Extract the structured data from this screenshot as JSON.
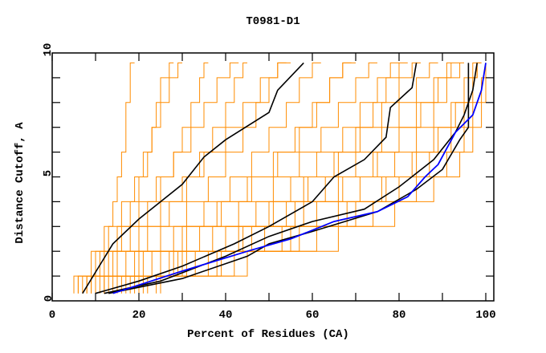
{
  "chart_data": {
    "type": "line",
    "title": "T0981-D1",
    "xlabel": "Percent of Residues (CA)",
    "ylabel": "Distance Cutoff, A",
    "xlim": [
      0,
      100
    ],
    "ylim": [
      0,
      10
    ],
    "x_tick_labels": [
      "0",
      "20",
      "40",
      "60",
      "80",
      "100"
    ],
    "y_tick_labels": [
      "0",
      "5",
      "10"
    ],
    "grid": false,
    "colors": {
      "models": "#ff8c00",
      "highlight": "#000000",
      "best": "#0000ff"
    },
    "orange_cutoffs": [
      0.3,
      1,
      2,
      3,
      4,
      5,
      6,
      7,
      8,
      9,
      9.6
    ],
    "orange_series": [
      [
        5,
        9,
        12,
        14,
        15,
        16,
        17,
        17,
        18,
        18,
        19
      ],
      [
        6,
        11,
        15,
        18,
        20,
        22,
        23,
        24,
        25,
        27,
        28
      ],
      [
        7,
        13,
        18,
        22,
        25,
        28,
        30,
        32,
        34,
        35,
        36
      ],
      [
        8,
        15,
        22,
        27,
        31,
        34,
        37,
        40,
        42,
        44,
        45
      ],
      [
        9,
        17,
        25,
        31,
        36,
        40,
        44,
        47,
        50,
        52,
        54
      ],
      [
        10,
        19,
        28,
        35,
        41,
        46,
        50,
        54,
        57,
        60,
        62
      ],
      [
        11,
        21,
        31,
        39,
        46,
        52,
        57,
        61,
        64,
        67,
        69
      ],
      [
        12,
        23,
        34,
        43,
        51,
        57,
        62,
        66,
        70,
        73,
        75
      ],
      [
        13,
        25,
        37,
        47,
        55,
        61,
        67,
        71,
        75,
        78,
        80
      ],
      [
        14,
        27,
        40,
        51,
        59,
        66,
        71,
        76,
        80,
        83,
        85
      ],
      [
        15,
        29,
        43,
        54,
        63,
        70,
        76,
        80,
        84,
        87,
        89
      ],
      [
        16,
        31,
        46,
        58,
        67,
        75,
        80,
        84,
        88,
        91,
        92
      ],
      [
        18,
        33,
        49,
        61,
        71,
        79,
        84,
        88,
        91,
        94,
        95
      ],
      [
        20,
        36,
        53,
        66,
        76,
        83,
        88,
        92,
        95,
        97,
        98
      ],
      [
        22,
        39,
        57,
        70,
        80,
        87,
        92,
        95,
        97,
        98,
        99
      ],
      [
        24,
        42,
        61,
        74,
        84,
        91,
        95,
        97,
        99,
        100,
        100
      ],
      [
        25,
        45,
        66,
        79,
        88,
        94,
        97,
        99,
        100,
        100,
        100
      ],
      [
        9,
        14,
        20,
        25,
        30,
        35,
        40,
        44,
        48,
        52,
        55
      ],
      [
        12,
        20,
        30,
        38,
        45,
        51,
        56,
        60,
        64,
        67,
        70
      ],
      [
        17,
        28,
        40,
        50,
        58,
        65,
        70,
        74,
        77,
        80,
        82
      ],
      [
        8,
        12,
        16,
        20,
        24,
        28,
        32,
        35,
        38,
        41,
        43
      ],
      [
        21,
        38,
        55,
        68,
        77,
        84,
        89,
        93,
        96,
        98,
        99
      ],
      [
        19,
        30,
        44,
        56,
        66,
        74,
        80,
        85,
        89,
        92,
        94
      ],
      [
        6,
        10,
        13,
        16,
        19,
        21,
        23,
        25,
        27,
        29,
        30
      ]
    ],
    "black_series": [
      [
        [
          7,
          0.3
        ],
        [
          14,
          2.3
        ],
        [
          20,
          3.3
        ],
        [
          30,
          4.7
        ],
        [
          35,
          5.8
        ],
        [
          40,
          6.5
        ],
        [
          50,
          7.6
        ],
        [
          52,
          8.5
        ],
        [
          58,
          9.6
        ]
      ],
      [
        [
          10,
          0.3
        ],
        [
          20,
          0.8
        ],
        [
          30,
          1.4
        ],
        [
          42,
          2.3
        ],
        [
          50,
          3.0
        ],
        [
          60,
          4.0
        ],
        [
          65,
          5.0
        ],
        [
          72,
          5.7
        ],
        [
          77,
          6.6
        ],
        [
          78,
          7.8
        ],
        [
          83,
          8.6
        ],
        [
          84,
          9.6
        ]
      ],
      [
        [
          12,
          0.3
        ],
        [
          25,
          0.8
        ],
        [
          40,
          1.8
        ],
        [
          50,
          2.6
        ],
        [
          60,
          3.2
        ],
        [
          72,
          3.7
        ],
        [
          80,
          4.6
        ],
        [
          88,
          5.7
        ],
        [
          93,
          6.8
        ],
        [
          95,
          7.5
        ],
        [
          97,
          8.5
        ],
        [
          98,
          9.6
        ]
      ],
      [
        [
          13,
          0.3
        ],
        [
          30,
          0.9
        ],
        [
          45,
          1.8
        ],
        [
          50,
          2.3
        ],
        [
          60,
          2.8
        ],
        [
          75,
          3.6
        ],
        [
          84,
          4.5
        ],
        [
          90,
          5.3
        ],
        [
          94,
          6.5
        ],
        [
          96,
          7.0
        ],
        [
          96,
          9.6
        ]
      ]
    ],
    "blue_series": [
      [
        14,
        0.3
      ],
      [
        30,
        1.2
      ],
      [
        45,
        2.0
      ],
      [
        55,
        2.5
      ],
      [
        65,
        3.2
      ],
      [
        75,
        3.6
      ],
      [
        82,
        4.2
      ],
      [
        86,
        5.0
      ],
      [
        89,
        5.5
      ],
      [
        93,
        6.8
      ],
      [
        97,
        7.5
      ],
      [
        99,
        8.5
      ],
      [
        100,
        9.6
      ]
    ]
  }
}
